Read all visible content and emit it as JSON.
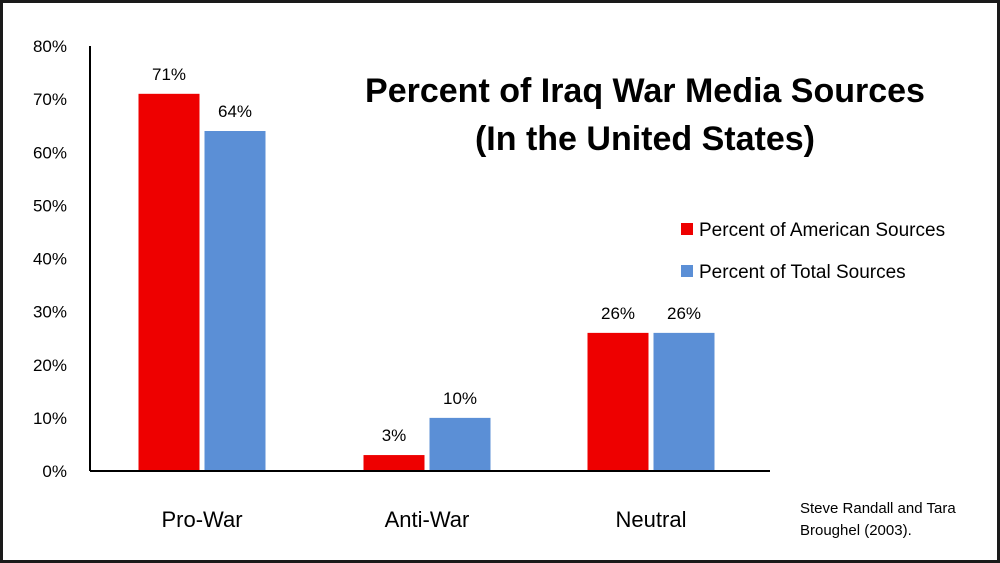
{
  "chart_data": {
    "type": "bar",
    "title_lines": [
      "Percent of Iraq War Media Sources",
      "(In the United States)"
    ],
    "categories": [
      "Pro-War",
      "Anti-War",
      "Neutral"
    ],
    "series": [
      {
        "name": "Percent of American Sources",
        "values": [
          71,
          3,
          26
        ],
        "labels": [
          "71%",
          "3%",
          "26%"
        ],
        "color": "#ee0000"
      },
      {
        "name": "Percent of Total Sources",
        "values": [
          64,
          10,
          26
        ],
        "labels": [
          "64%",
          "10%",
          "26%"
        ],
        "color": "#5b8fd6"
      }
    ],
    "ylim": [
      0,
      80
    ],
    "yticks": [
      "0%",
      "10%",
      "20%",
      "30%",
      "40%",
      "50%",
      "60%",
      "70%",
      "80%"
    ],
    "legend_position": "right",
    "grid": false
  },
  "source_note": [
    "Steve Randall and Tara",
    "Broughel (2003)."
  ],
  "colors": {
    "background": "#ffffff",
    "border": "#1a1a1a",
    "axis": "#000000"
  }
}
